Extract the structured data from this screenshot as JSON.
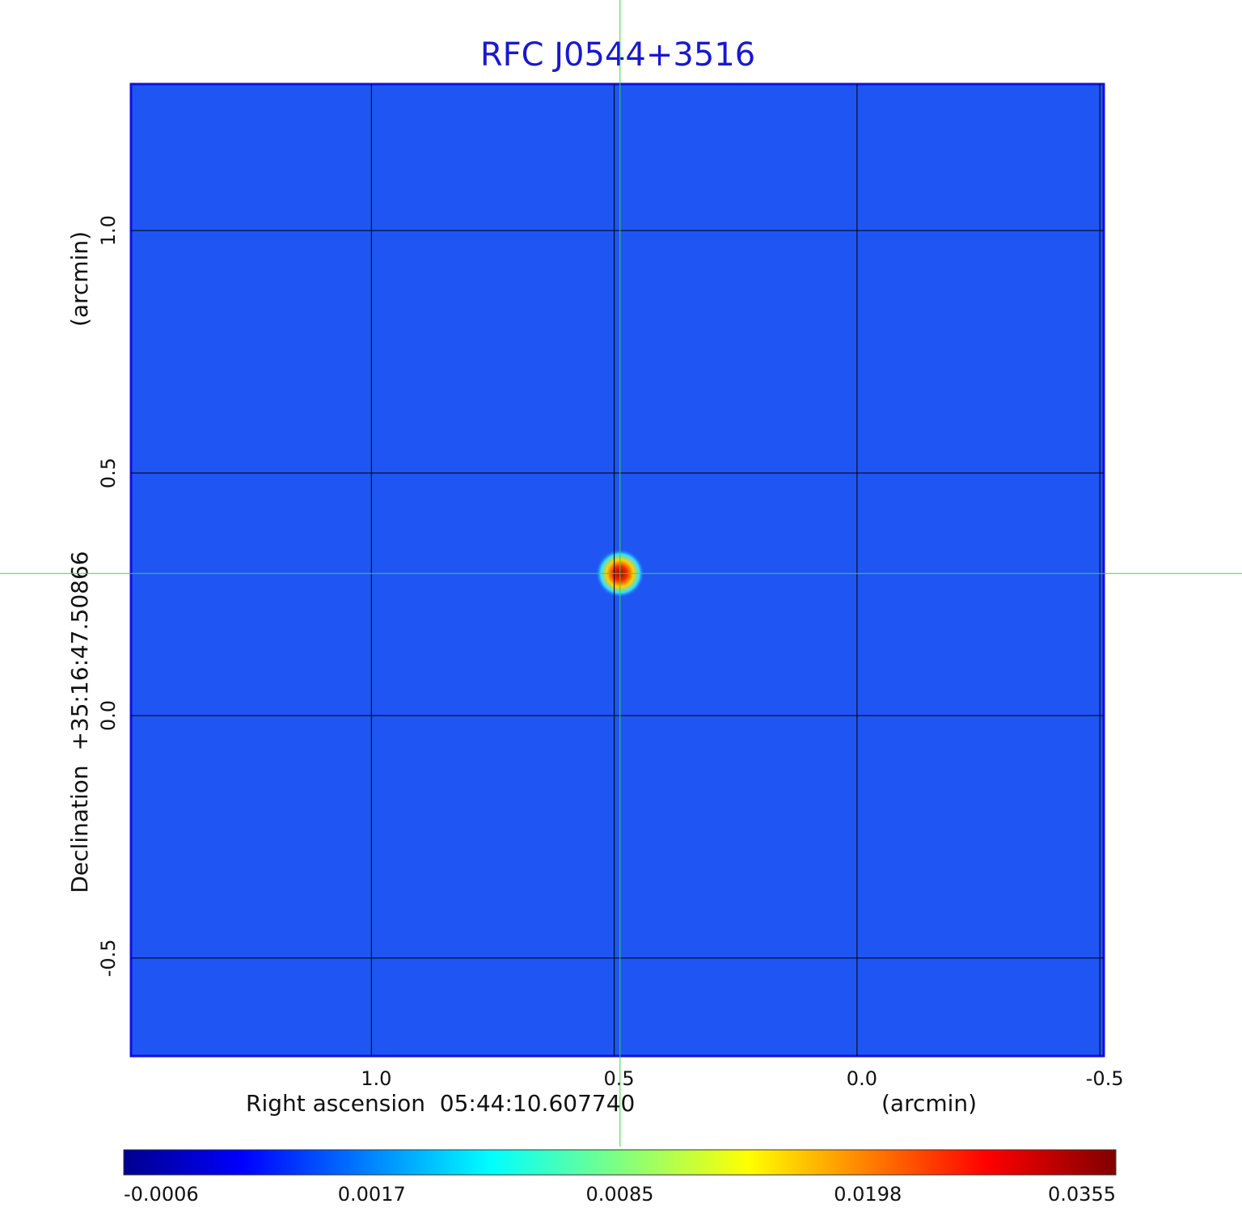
{
  "chart_data": {
    "type": "image",
    "title": "RFC J0544+3516",
    "x_label": "Right ascension  05:44:10.607740",
    "x_unit": "(arcmin)",
    "y_label": "Declination  +35:16:47.50866",
    "y_unit": "(arcmin)",
    "xlim": [
      1.495,
      -0.508
    ],
    "ylim": [
      -0.702,
      1.302
    ],
    "xticks": [
      {
        "value": 1.0,
        "label": "1.0"
      },
      0.5,
      {
        "value": 0.0,
        "label": "0.0"
      },
      -0.5
    ],
    "yticks": [
      {
        "value": 1.0,
        "label": "1.0"
      },
      0.5,
      {
        "value": 0.0,
        "label": "0.0"
      },
      -0.5
    ],
    "grid": true,
    "crosshair": {
      "x": 0.488,
      "y": 0.293
    },
    "source": {
      "x": 0.488,
      "y": 0.293,
      "peak": 0.0355
    },
    "colorbar": {
      "ticks": [
        -0.0006,
        0.0017,
        0.0085,
        0.0198,
        0.0355
      ]
    }
  }
}
